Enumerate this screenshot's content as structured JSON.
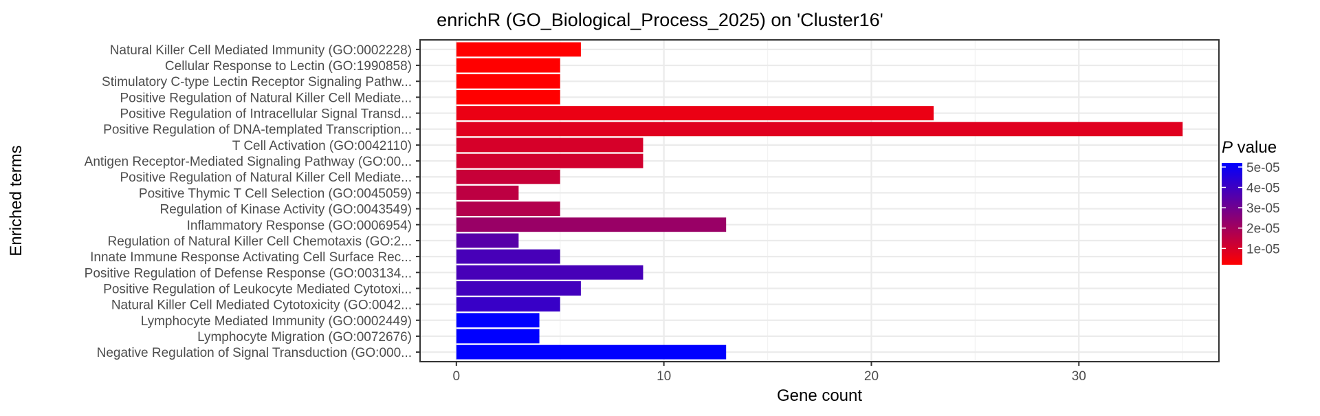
{
  "chart_data": {
    "type": "bar",
    "orientation": "horizontal",
    "title": "enrichR (GO_Biological_Process_2025) on 'Cluster16'",
    "xlabel": "Gene count",
    "ylabel": "Enriched terms",
    "xlim": [
      -1.75,
      36.75
    ],
    "xticks": [
      0,
      10,
      20,
      30
    ],
    "grid": true,
    "legend": {
      "title_italic": "P",
      "title_rest": " value",
      "position": "right",
      "ticks": [
        "5e-05",
        "4e-05",
        "3e-05",
        "2e-05",
        "1e-05"
      ],
      "tick_values": [
        5e-05,
        4e-05,
        3e-05,
        2e-05,
        1e-05
      ],
      "range": [
        2e-06,
        5.2e-05
      ],
      "low_color": "#ff0000",
      "high_color": "#0000ff"
    },
    "categories": [
      "Natural Killer Cell Mediated Immunity (GO:0002228)",
      "Cellular Response to Lectin (GO:1990858)",
      "Stimulatory C-type Lectin Receptor Signaling Pathw...",
      "Positive Regulation of Natural Killer Cell Mediate...",
      "Positive Regulation of Intracellular Signal Transd...",
      "Positive Regulation of DNA-templated Transcription...",
      "T Cell Activation (GO:0042110)",
      "Antigen Receptor-Mediated Signaling Pathway (GO:00...",
      "Positive Regulation of Natural Killer Cell Mediate...",
      "Positive Thymic T Cell Selection (GO:0045059)",
      "Regulation of Kinase Activity (GO:0043549)",
      "Inflammatory Response (GO:0006954)",
      "Regulation of Natural Killer Cell Chemotaxis (GO:2...",
      "Innate Immune Response Activating Cell Surface Rec...",
      "Positive Regulation of Defense Response (GO:003134...",
      "Positive Regulation of Leukocyte Mediated Cytotoxi...",
      "Natural Killer Cell Mediated Cytotoxicity (GO:0042...",
      "Lymphocyte Mediated Immunity (GO:0002449)",
      "Lymphocyte Migration (GO:0072676)",
      "Negative Regulation of Signal Transduction (GO:000..."
    ],
    "values": [
      6,
      5,
      5,
      5,
      23,
      35,
      9,
      9,
      5,
      3,
      5,
      13,
      3,
      5,
      9,
      6,
      5,
      4,
      4,
      13
    ],
    "p_values": [
      2e-06,
      2e-06,
      2e-06,
      2e-06,
      6e-06,
      8e-06,
      1e-05,
      1.1e-05,
      1.3e-05,
      1.5e-05,
      1.7e-05,
      2.2e-05,
      3.5e-05,
      3.8e-05,
      3.8e-05,
      3.9e-05,
      4.1e-05,
      5.2e-05,
      5.2e-05,
      5.2e-05
    ]
  }
}
